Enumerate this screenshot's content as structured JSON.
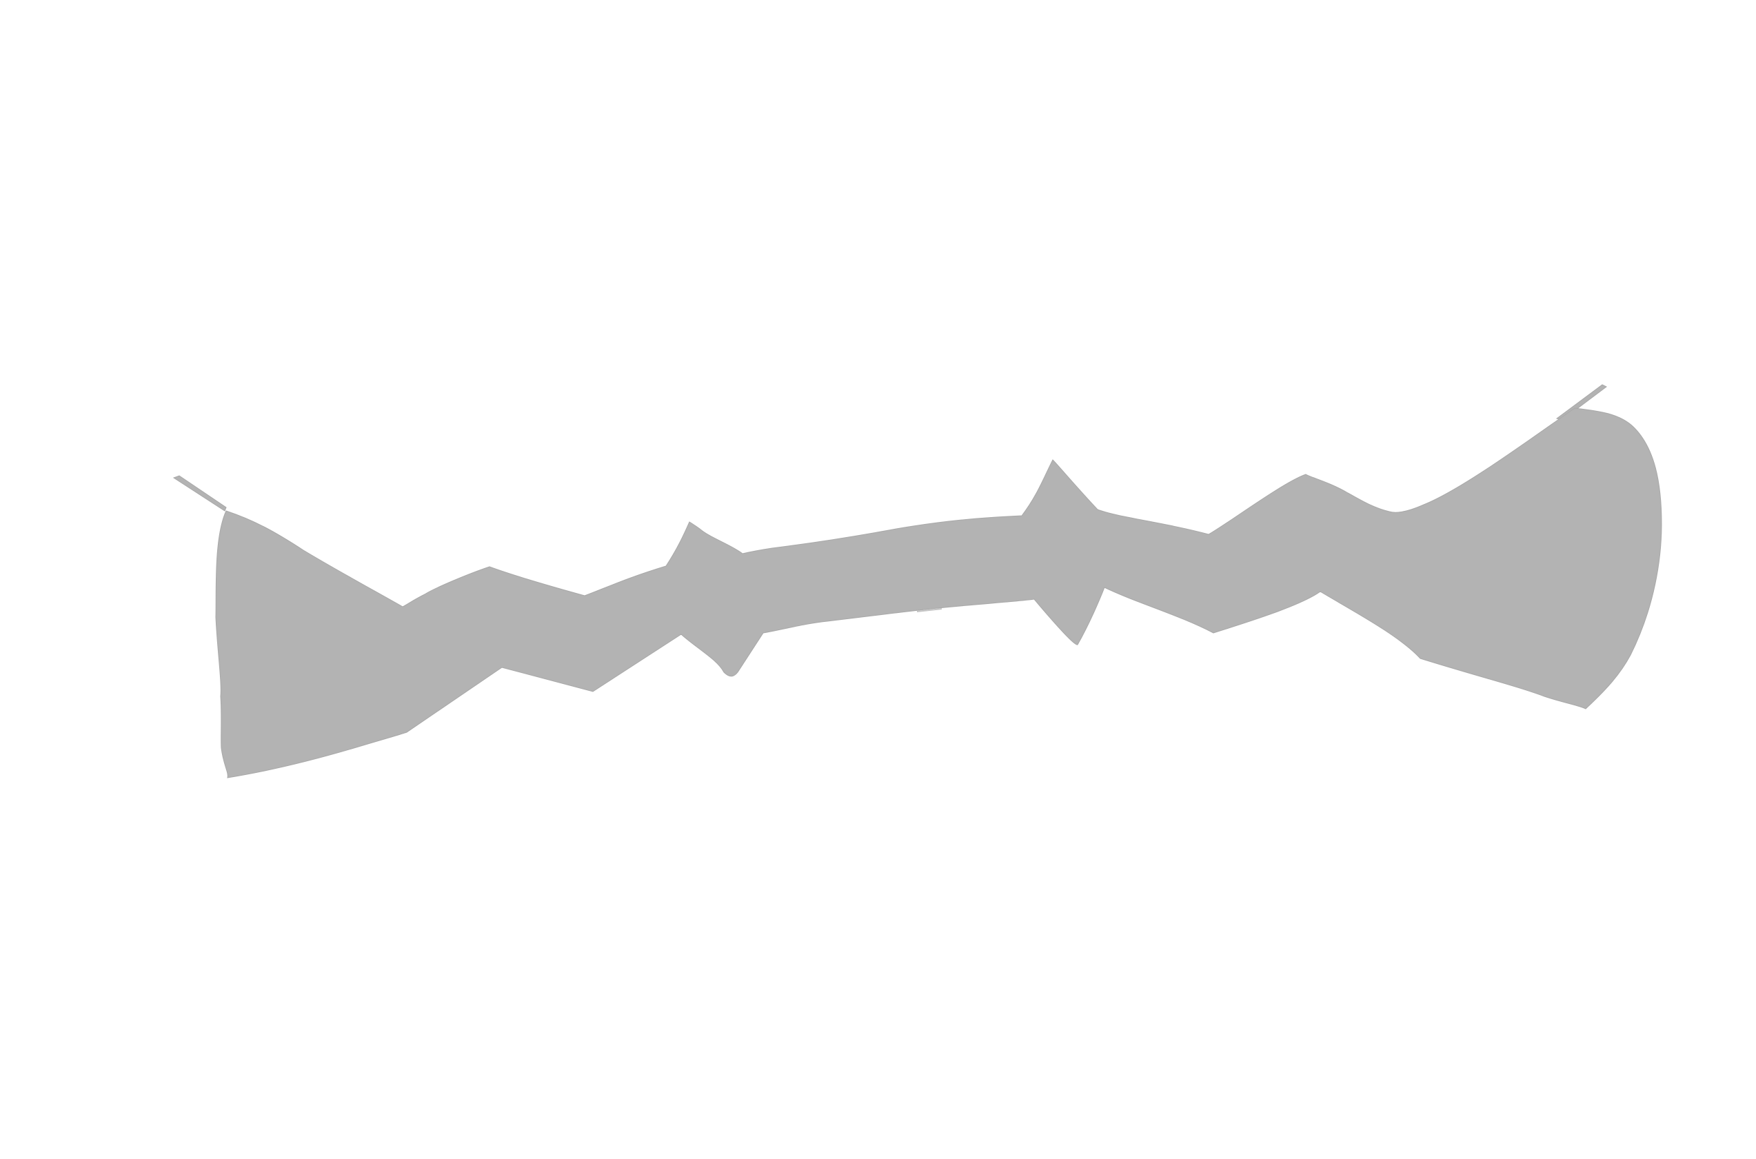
{
  "colors": {
    "background": "#ffffff",
    "shape_fill": "#b3b3b3",
    "shape_edge": "#a8a8a8"
  },
  "shape": {
    "name": "irregular-gray-band",
    "description_visible_text": ""
  }
}
